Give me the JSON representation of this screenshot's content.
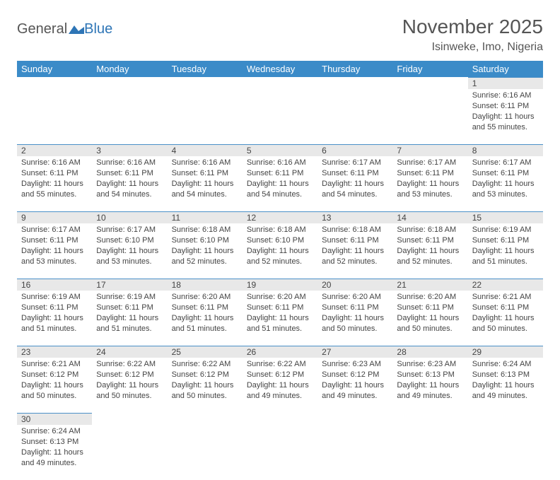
{
  "logo": {
    "text1": "General",
    "text2": "Blue"
  },
  "header": {
    "month_title": "November 2025",
    "location": "Isinweke, Imo, Nigeria"
  },
  "colors": {
    "header_bg": "#3b8bc8",
    "header_text": "#ffffff",
    "daynum_bg": "#e8e8e8",
    "cell_border": "#4a90c8",
    "text": "#444444",
    "logo_gray": "#555555",
    "logo_blue": "#2e75b6"
  },
  "day_names": [
    "Sunday",
    "Monday",
    "Tuesday",
    "Wednesday",
    "Thursday",
    "Friday",
    "Saturday"
  ],
  "weeks": [
    [
      {
        "num": "",
        "lines": []
      },
      {
        "num": "",
        "lines": []
      },
      {
        "num": "",
        "lines": []
      },
      {
        "num": "",
        "lines": []
      },
      {
        "num": "",
        "lines": []
      },
      {
        "num": "",
        "lines": []
      },
      {
        "num": "1",
        "lines": [
          "Sunrise: 6:16 AM",
          "Sunset: 6:11 PM",
          "Daylight: 11 hours and 55 minutes."
        ]
      }
    ],
    [
      {
        "num": "2",
        "lines": [
          "Sunrise: 6:16 AM",
          "Sunset: 6:11 PM",
          "Daylight: 11 hours and 55 minutes."
        ]
      },
      {
        "num": "3",
        "lines": [
          "Sunrise: 6:16 AM",
          "Sunset: 6:11 PM",
          "Daylight: 11 hours and 54 minutes."
        ]
      },
      {
        "num": "4",
        "lines": [
          "Sunrise: 6:16 AM",
          "Sunset: 6:11 PM",
          "Daylight: 11 hours and 54 minutes."
        ]
      },
      {
        "num": "5",
        "lines": [
          "Sunrise: 6:16 AM",
          "Sunset: 6:11 PM",
          "Daylight: 11 hours and 54 minutes."
        ]
      },
      {
        "num": "6",
        "lines": [
          "Sunrise: 6:17 AM",
          "Sunset: 6:11 PM",
          "Daylight: 11 hours and 54 minutes."
        ]
      },
      {
        "num": "7",
        "lines": [
          "Sunrise: 6:17 AM",
          "Sunset: 6:11 PM",
          "Daylight: 11 hours and 53 minutes."
        ]
      },
      {
        "num": "8",
        "lines": [
          "Sunrise: 6:17 AM",
          "Sunset: 6:11 PM",
          "Daylight: 11 hours and 53 minutes."
        ]
      }
    ],
    [
      {
        "num": "9",
        "lines": [
          "Sunrise: 6:17 AM",
          "Sunset: 6:11 PM",
          "Daylight: 11 hours and 53 minutes."
        ]
      },
      {
        "num": "10",
        "lines": [
          "Sunrise: 6:17 AM",
          "Sunset: 6:10 PM",
          "Daylight: 11 hours and 53 minutes."
        ]
      },
      {
        "num": "11",
        "lines": [
          "Sunrise: 6:18 AM",
          "Sunset: 6:10 PM",
          "Daylight: 11 hours and 52 minutes."
        ]
      },
      {
        "num": "12",
        "lines": [
          "Sunrise: 6:18 AM",
          "Sunset: 6:10 PM",
          "Daylight: 11 hours and 52 minutes."
        ]
      },
      {
        "num": "13",
        "lines": [
          "Sunrise: 6:18 AM",
          "Sunset: 6:11 PM",
          "Daylight: 11 hours and 52 minutes."
        ]
      },
      {
        "num": "14",
        "lines": [
          "Sunrise: 6:18 AM",
          "Sunset: 6:11 PM",
          "Daylight: 11 hours and 52 minutes."
        ]
      },
      {
        "num": "15",
        "lines": [
          "Sunrise: 6:19 AM",
          "Sunset: 6:11 PM",
          "Daylight: 11 hours and 51 minutes."
        ]
      }
    ],
    [
      {
        "num": "16",
        "lines": [
          "Sunrise: 6:19 AM",
          "Sunset: 6:11 PM",
          "Daylight: 11 hours and 51 minutes."
        ]
      },
      {
        "num": "17",
        "lines": [
          "Sunrise: 6:19 AM",
          "Sunset: 6:11 PM",
          "Daylight: 11 hours and 51 minutes."
        ]
      },
      {
        "num": "18",
        "lines": [
          "Sunrise: 6:20 AM",
          "Sunset: 6:11 PM",
          "Daylight: 11 hours and 51 minutes."
        ]
      },
      {
        "num": "19",
        "lines": [
          "Sunrise: 6:20 AM",
          "Sunset: 6:11 PM",
          "Daylight: 11 hours and 51 minutes."
        ]
      },
      {
        "num": "20",
        "lines": [
          "Sunrise: 6:20 AM",
          "Sunset: 6:11 PM",
          "Daylight: 11 hours and 50 minutes."
        ]
      },
      {
        "num": "21",
        "lines": [
          "Sunrise: 6:20 AM",
          "Sunset: 6:11 PM",
          "Daylight: 11 hours and 50 minutes."
        ]
      },
      {
        "num": "22",
        "lines": [
          "Sunrise: 6:21 AM",
          "Sunset: 6:11 PM",
          "Daylight: 11 hours and 50 minutes."
        ]
      }
    ],
    [
      {
        "num": "23",
        "lines": [
          "Sunrise: 6:21 AM",
          "Sunset: 6:12 PM",
          "Daylight: 11 hours and 50 minutes."
        ]
      },
      {
        "num": "24",
        "lines": [
          "Sunrise: 6:22 AM",
          "Sunset: 6:12 PM",
          "Daylight: 11 hours and 50 minutes."
        ]
      },
      {
        "num": "25",
        "lines": [
          "Sunrise: 6:22 AM",
          "Sunset: 6:12 PM",
          "Daylight: 11 hours and 50 minutes."
        ]
      },
      {
        "num": "26",
        "lines": [
          "Sunrise: 6:22 AM",
          "Sunset: 6:12 PM",
          "Daylight: 11 hours and 49 minutes."
        ]
      },
      {
        "num": "27",
        "lines": [
          "Sunrise: 6:23 AM",
          "Sunset: 6:12 PM",
          "Daylight: 11 hours and 49 minutes."
        ]
      },
      {
        "num": "28",
        "lines": [
          "Sunrise: 6:23 AM",
          "Sunset: 6:13 PM",
          "Daylight: 11 hours and 49 minutes."
        ]
      },
      {
        "num": "29",
        "lines": [
          "Sunrise: 6:24 AM",
          "Sunset: 6:13 PM",
          "Daylight: 11 hours and 49 minutes."
        ]
      }
    ],
    [
      {
        "num": "30",
        "lines": [
          "Sunrise: 6:24 AM",
          "Sunset: 6:13 PM",
          "Daylight: 11 hours and 49 minutes."
        ]
      },
      {
        "num": "",
        "lines": []
      },
      {
        "num": "",
        "lines": []
      },
      {
        "num": "",
        "lines": []
      },
      {
        "num": "",
        "lines": []
      },
      {
        "num": "",
        "lines": []
      },
      {
        "num": "",
        "lines": []
      }
    ]
  ]
}
